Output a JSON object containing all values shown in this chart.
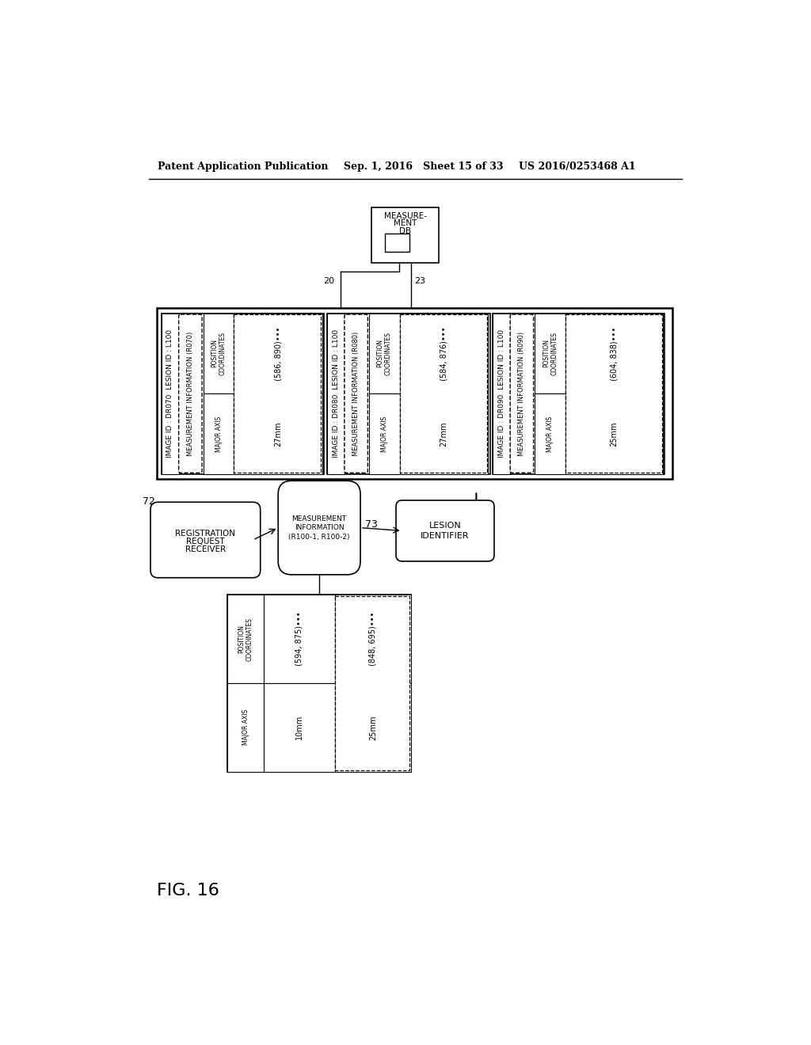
{
  "bg_color": "#ffffff",
  "header_left": "Patent Application Publication",
  "header_mid": "Sep. 1, 2016   Sheet 15 of 33",
  "header_right": "US 2016/0253468 A1",
  "fig_label": "FIG. 16",
  "records": [
    {
      "header": "IMAGE ID : DR070  LESION ID : L100",
      "meas_label": "MEASUREMENT INFORMATION (R070)",
      "coords": "(586, 890)•••",
      "axis": "27mm"
    },
    {
      "header": "IMAGE ID : DR080  LESION ID : L100",
      "meas_label": "MEASUREMENT INFORMATION (R080)",
      "coords": "(584, 876)•••",
      "axis": "27mm"
    },
    {
      "header": "IMAGE ID : DR090  LESION ID : L100",
      "meas_label": "MEASUREMENT INFORMATION (R090)",
      "coords": "(604, 838)•••",
      "axis": "25mm"
    }
  ],
  "table_row_labels": [
    "POSITION\nCOORDINATES",
    "MAJOR AXIS"
  ],
  "table_col1": [
    "(594, 875)•••",
    "10mm"
  ],
  "table_col2": [
    "(848, 695)•••",
    "25mm"
  ]
}
